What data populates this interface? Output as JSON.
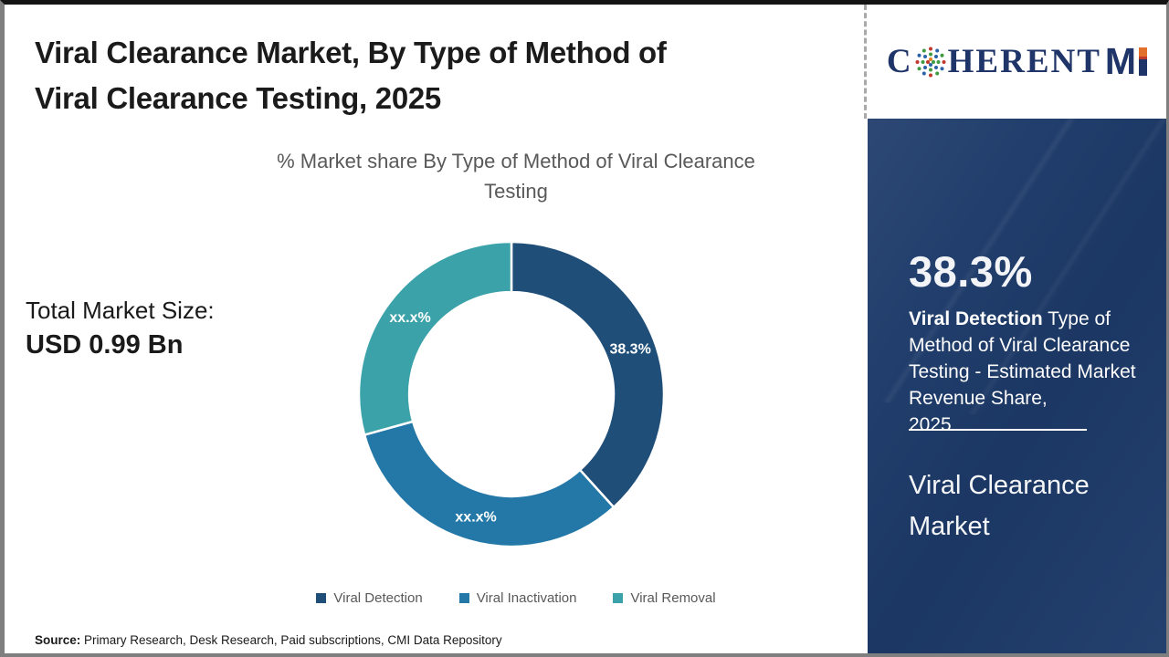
{
  "header": {
    "title_lines": [
      "Viral Clearance Market, By Type of Method of",
      "Viral Clearance Testing, 2025"
    ]
  },
  "subtitle_lines": [
    "% Market share By Type of Method of Viral Clearance",
    "Testing"
  ],
  "market_size": {
    "label": "Total Market Size:",
    "value": "USD 0.99 Bn"
  },
  "chart_data": {
    "type": "pie",
    "subtype": "donut",
    "title": "% Market share By Type of Method of Viral Clearance Testing",
    "categories": [
      "Viral Detection",
      "Viral Inactivation",
      "Viral Removal"
    ],
    "values": [
      38.3,
      32.4,
      29.3
    ],
    "slice_labels": [
      "38.3%",
      "xx.x%",
      "xx.x%"
    ],
    "colors": [
      "#1F4E79",
      "#2478A8",
      "#3AA2A8"
    ],
    "legend_position": "bottom",
    "start_angle_deg": 0,
    "inner_radius_ratio": 0.67
  },
  "source": {
    "label": "Source:",
    "text": " Primary Research, Desk Research, Paid subscriptions, CMI Data Repository"
  },
  "logo": {
    "part_c": "C",
    "part_rest": "HERENT",
    "part_m": "M"
  },
  "sidebar": {
    "stat_value": "38.3%",
    "stat_highlight": "Viral Detection",
    "stat_text": " Type of Method of Viral Clearance Testing - Estimated Market Revenue Share,",
    "stat_year": "2025",
    "market_title": "Viral Clearance Market"
  }
}
